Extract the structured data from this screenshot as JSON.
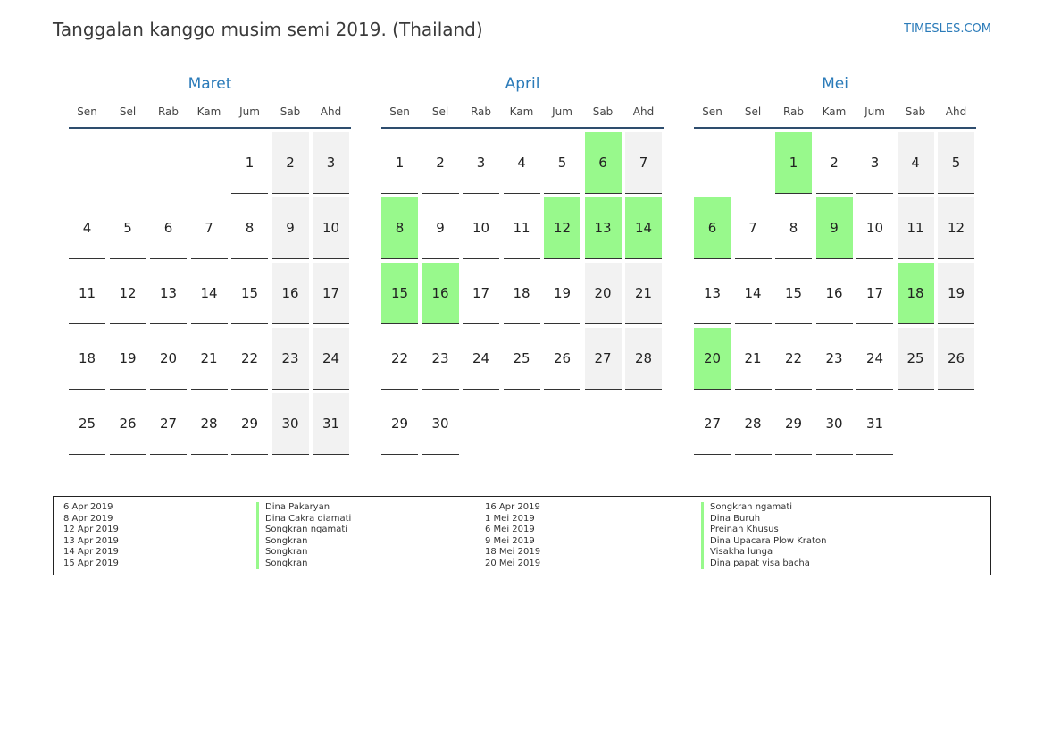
{
  "title": "Tanggalan kanggo musim semi 2019. (Thailand)",
  "site": "TIMESLES.COM",
  "colors": {
    "accent": "#2b7bb9",
    "holiday": "#98f98c",
    "weekend": "#f2f2f2",
    "rule": "#2e4d6e"
  },
  "weekdays": [
    "Sen",
    "Sel",
    "Rab",
    "Kam",
    "Jum",
    "Sab",
    "Ahd"
  ],
  "months": [
    {
      "name": "Maret",
      "first_weekday_index": 4,
      "days_in_month": 31,
      "holidays": []
    },
    {
      "name": "April",
      "first_weekday_index": 0,
      "days_in_month": 30,
      "holidays": [
        6,
        8,
        12,
        13,
        14,
        15,
        16
      ]
    },
    {
      "name": "Mei",
      "first_weekday_index": 2,
      "days_in_month": 31,
      "holidays": [
        1,
        6,
        9,
        18,
        20
      ]
    }
  ],
  "legend": [
    {
      "date": "6 Apr 2019",
      "name": "Dina Pakaryan"
    },
    {
      "date": "8 Apr 2019",
      "name": "Dina Cakra diamati"
    },
    {
      "date": "12 Apr 2019",
      "name": "Songkran ngamati"
    },
    {
      "date": "13 Apr 2019",
      "name": "Songkran"
    },
    {
      "date": "14 Apr 2019",
      "name": "Songkran"
    },
    {
      "date": "15 Apr 2019",
      "name": "Songkran"
    },
    {
      "date": "16 Apr 2019",
      "name": "Songkran ngamati"
    },
    {
      "date": "1 Mei 2019",
      "name": "Dina Buruh"
    },
    {
      "date": "6 Mei 2019",
      "name": "Preinan Khusus"
    },
    {
      "date": "9 Mei 2019",
      "name": "Dina Upacara Plow Kraton"
    },
    {
      "date": "18 Mei 2019",
      "name": "Visakha lunga"
    },
    {
      "date": "20 Mei 2019",
      "name": "Dina papat visa bacha"
    }
  ]
}
